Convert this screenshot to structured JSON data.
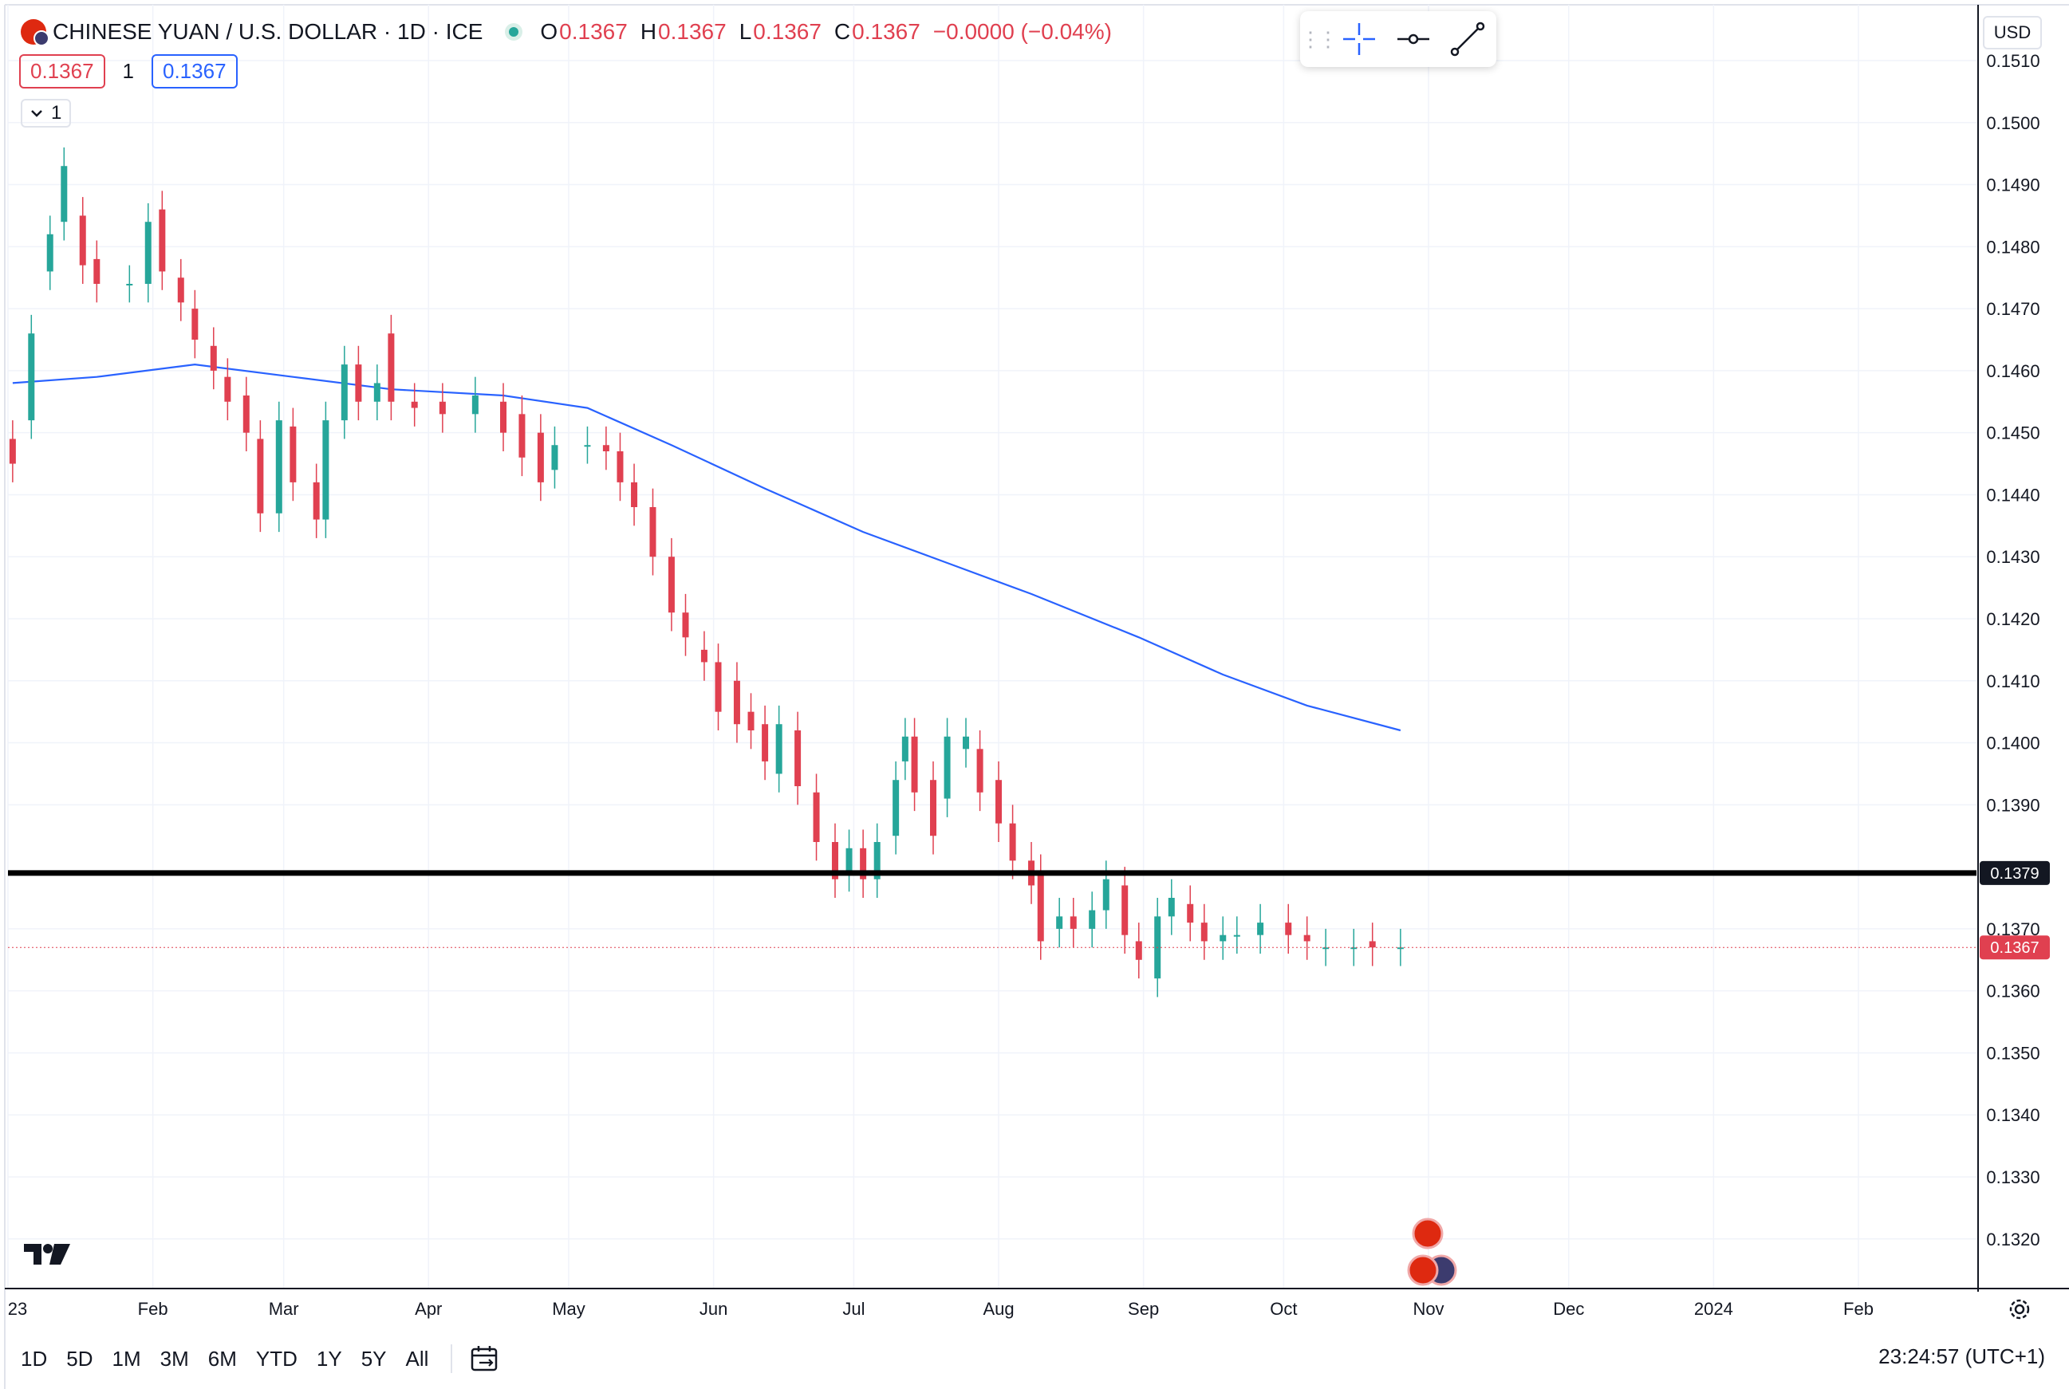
{
  "header": {
    "symbol_title": "CHINESE YUAN / U.S. DOLLAR · 1D · ICE",
    "ohlc": [
      {
        "label": "O",
        "value": "0.1367"
      },
      {
        "label": "H",
        "value": "0.1367"
      },
      {
        "label": "L",
        "value": "0.1367"
      },
      {
        "label": "C",
        "value": "0.1367"
      }
    ],
    "change": "−0.0000 (−0.04%)",
    "market_status_color": "#26a69a"
  },
  "trade_boxes": {
    "sell_price": "0.1367",
    "quantity": "1",
    "buy_price": "0.1367"
  },
  "indicator_toggle": {
    "label": "1",
    "icon": "chevron-down-icon"
  },
  "drawing_toolbar": {
    "tools": [
      "crosshair-icon",
      "horizontal-ray-icon",
      "trend-line-icon"
    ],
    "grip_icon": "drag-grip-icon"
  },
  "currency_selector": "USD",
  "logo_icon": "tradingview-logo-icon",
  "price_scale": {
    "ticks": [
      "0.1510",
      "0.1500",
      "0.1490",
      "0.1480",
      "0.1470",
      "0.1460",
      "0.1450",
      "0.1440",
      "0.1430",
      "0.1420",
      "0.1410",
      "0.1400",
      "0.1390",
      "0.1370",
      "0.1360",
      "0.1350",
      "0.1340",
      "0.1330",
      "0.1320"
    ],
    "horizontal_line_label": "0.1379",
    "last_price_label": "0.1367"
  },
  "time_axis": [
    "23",
    "Feb",
    "Mar",
    "Apr",
    "May",
    "Jun",
    "Jul",
    "Aug",
    "Sep",
    "Oct",
    "Nov",
    "Dec",
    "2024",
    "Feb"
  ],
  "bottom_bar": {
    "ranges": [
      "1D",
      "5D",
      "1M",
      "3M",
      "6M",
      "YTD",
      "1Y",
      "5Y",
      "All"
    ],
    "date_range_icon": "calendar-goto-icon",
    "clock": "23:24:57 (UTC+1)"
  },
  "events": [
    "china-flag-event-icon",
    "china-flag-event-icon",
    "us-flag-event-icon"
  ],
  "colors": {
    "up": "#26a69a",
    "down": "#e04050",
    "moving_average": "#2962ff",
    "horizontal_line": "#000000"
  },
  "chart_data": {
    "type": "candlestick",
    "title": "CHINESE YUAN / U.S. DOLLAR · 1D · ICE",
    "ylim": [
      0.1312,
      0.1519
    ],
    "x_axis": "date (2023)",
    "horizontal_line": 0.1379,
    "last_price": 0.1367,
    "series": [
      {
        "name": "price",
        "points": [
          [
            "2023-01-02",
            0.1449,
            0.1445
          ],
          [
            "2023-01-06",
            0.1452,
            0.1466
          ],
          [
            "2023-01-10",
            0.1476,
            0.1482
          ],
          [
            "2023-01-13",
            0.1484,
            0.1493
          ],
          [
            "2023-01-17",
            0.1485,
            0.1477
          ],
          [
            "2023-01-20",
            0.1478,
            0.1474
          ],
          [
            "2023-01-27",
            0.1474,
            0.1474
          ],
          [
            "2023-01-31",
            0.1474,
            0.1484
          ],
          [
            "2023-02-03",
            0.1486,
            0.1476
          ],
          [
            "2023-02-07",
            0.1475,
            0.1471
          ],
          [
            "2023-02-10",
            0.147,
            0.1465
          ],
          [
            "2023-02-14",
            0.1464,
            0.146
          ],
          [
            "2023-02-17",
            0.1459,
            0.1455
          ],
          [
            "2023-02-21",
            0.1456,
            0.145
          ],
          [
            "2023-02-24",
            0.1449,
            0.1437
          ],
          [
            "2023-02-28",
            0.1437,
            0.1452
          ],
          [
            "2023-03-03",
            0.1451,
            0.1442
          ],
          [
            "2023-03-08",
            0.1442,
            0.1436
          ],
          [
            "2023-03-10",
            0.1436,
            0.1452
          ],
          [
            "2023-03-14",
            0.1452,
            0.1461
          ],
          [
            "2023-03-17",
            0.1461,
            0.1455
          ],
          [
            "2023-03-21",
            0.1455,
            0.1458
          ],
          [
            "2023-03-24",
            0.1466,
            0.1455
          ],
          [
            "2023-03-29",
            0.1455,
            0.1454
          ],
          [
            "2023-04-04",
            0.1455,
            0.1453
          ],
          [
            "2023-04-11",
            0.1453,
            0.1456
          ],
          [
            "2023-04-17",
            0.1455,
            0.145
          ],
          [
            "2023-04-21",
            0.1453,
            0.1446
          ],
          [
            "2023-04-25",
            0.145,
            0.1442
          ],
          [
            "2023-04-28",
            0.1444,
            0.1448
          ],
          [
            "2023-05-05",
            0.1448,
            0.1448
          ],
          [
            "2023-05-09",
            0.1448,
            0.1447
          ],
          [
            "2023-05-12",
            0.1447,
            0.1442
          ],
          [
            "2023-05-15",
            0.1442,
            0.1438
          ],
          [
            "2023-05-19",
            0.1438,
            0.143
          ],
          [
            "2023-05-23",
            0.143,
            0.1421
          ],
          [
            "2023-05-26",
            0.1421,
            0.1417
          ],
          [
            "2023-05-30",
            0.1415,
            0.1413
          ],
          [
            "2023-06-02",
            0.1413,
            0.1405
          ],
          [
            "2023-06-06",
            0.141,
            0.1403
          ],
          [
            "2023-06-09",
            0.1405,
            0.1402
          ],
          [
            "2023-06-12",
            0.1403,
            0.1397
          ],
          [
            "2023-06-15",
            0.1395,
            0.1403
          ],
          [
            "2023-06-19",
            0.1402,
            0.1393
          ],
          [
            "2023-06-23",
            0.1392,
            0.1384
          ],
          [
            "2023-06-27",
            0.1384,
            0.1378
          ],
          [
            "2023-06-30",
            0.1379,
            0.1383
          ],
          [
            "2023-07-03",
            0.1383,
            0.1378
          ],
          [
            "2023-07-06",
            0.1378,
            0.1384
          ],
          [
            "2023-07-10",
            0.1385,
            0.1394
          ],
          [
            "2023-07-12",
            0.1397,
            0.1401
          ],
          [
            "2023-07-14",
            0.1401,
            0.1392
          ],
          [
            "2023-07-18",
            0.1394,
            0.1385
          ],
          [
            "2023-07-21",
            0.1391,
            0.1401
          ],
          [
            "2023-07-25",
            0.1399,
            0.1401
          ],
          [
            "2023-07-28",
            0.1399,
            0.1392
          ],
          [
            "2023-08-01",
            0.1394,
            0.1387
          ],
          [
            "2023-08-04",
            0.1387,
            0.1381
          ],
          [
            "2023-08-08",
            0.1381,
            0.1377
          ],
          [
            "2023-08-10",
            0.1379,
            0.1368
          ],
          [
            "2023-08-14",
            0.137,
            0.1372
          ],
          [
            "2023-08-17",
            0.1372,
            0.137
          ],
          [
            "2023-08-21",
            0.137,
            0.1373
          ],
          [
            "2023-08-24",
            0.1373,
            0.1378
          ],
          [
            "2023-08-28",
            0.1377,
            0.1369
          ],
          [
            "2023-08-31",
            0.1368,
            0.1365
          ],
          [
            "2023-09-04",
            0.1362,
            0.1372
          ],
          [
            "2023-09-07",
            0.1372,
            0.1375
          ],
          [
            "2023-09-11",
            0.1374,
            0.1371
          ],
          [
            "2023-09-14",
            0.1371,
            0.1368
          ],
          [
            "2023-09-18",
            0.1368,
            0.1369
          ],
          [
            "2023-09-21",
            0.1369,
            0.1369
          ],
          [
            "2023-09-26",
            0.1369,
            0.1371
          ],
          [
            "2023-10-02",
            0.1371,
            0.1369
          ],
          [
            "2023-10-06",
            0.1369,
            0.1368
          ],
          [
            "2023-10-10",
            0.1367,
            0.1367
          ],
          [
            "2023-10-16",
            0.1367,
            0.1367
          ],
          [
            "2023-10-20",
            0.1368,
            0.1367
          ],
          [
            "2023-10-26",
            0.1367,
            0.1367
          ]
        ]
      },
      {
        "name": "moving average",
        "points": [
          [
            "2023-01-02",
            0.1458
          ],
          [
            "2023-01-20",
            0.1459
          ],
          [
            "2023-02-10",
            0.1461
          ],
          [
            "2023-03-03",
            0.1459
          ],
          [
            "2023-03-24",
            0.1457
          ],
          [
            "2023-04-17",
            0.1456
          ],
          [
            "2023-05-05",
            0.1454
          ],
          [
            "2023-05-23",
            0.1448
          ],
          [
            "2023-06-12",
            0.1441
          ],
          [
            "2023-07-03",
            0.1434
          ],
          [
            "2023-07-21",
            0.1429
          ],
          [
            "2023-08-08",
            0.1424
          ],
          [
            "2023-08-31",
            0.1417
          ],
          [
            "2023-09-18",
            0.1411
          ],
          [
            "2023-10-06",
            0.1406
          ],
          [
            "2023-10-26",
            0.1402
          ]
        ]
      }
    ]
  }
}
